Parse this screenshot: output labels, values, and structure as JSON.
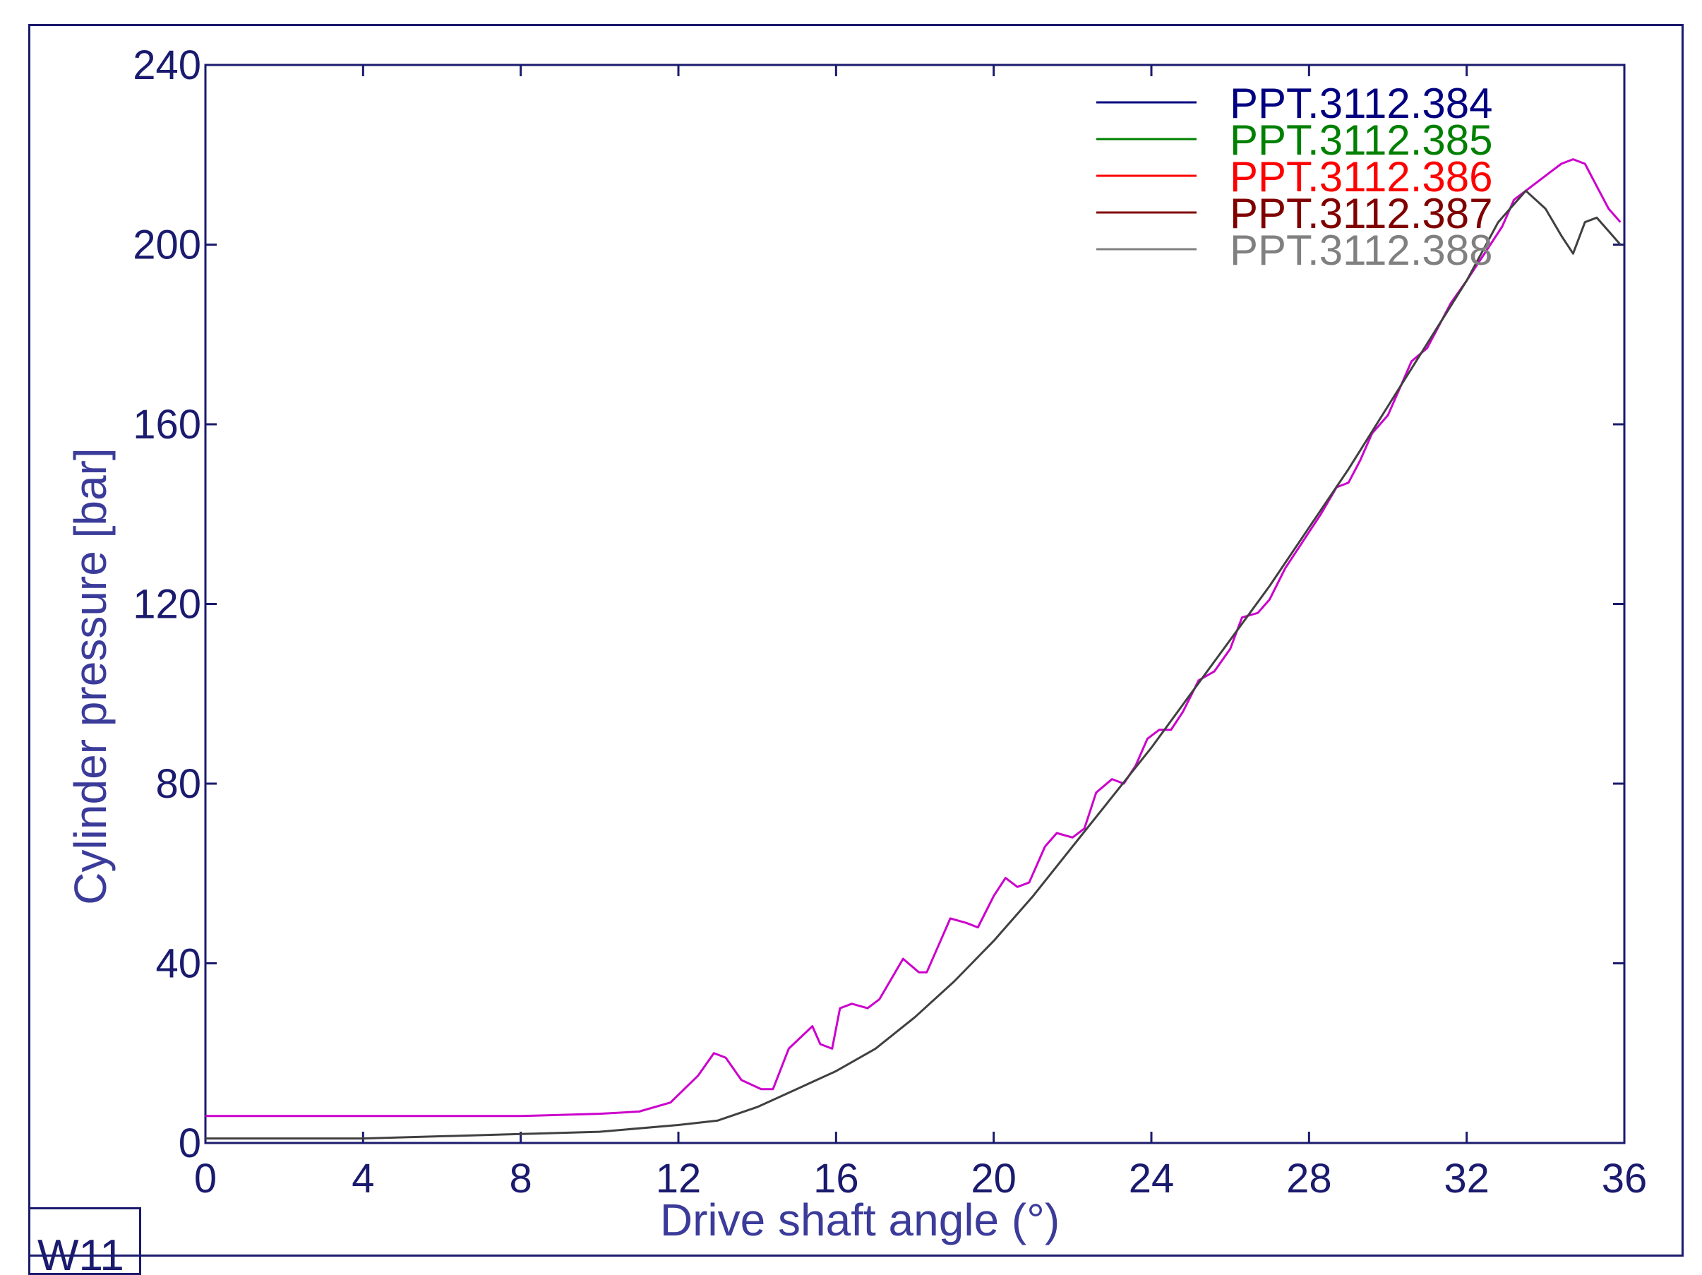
{
  "chart_data": {
    "type": "line",
    "xlabel": "Drive shaft angle (°)",
    "ylabel": "Cylinder pressure [bar]",
    "xlim": [
      0,
      36
    ],
    "ylim": [
      0,
      240
    ],
    "xticks": [
      0,
      4,
      8,
      12,
      16,
      20,
      24,
      28,
      32,
      36
    ],
    "yticks": [
      0,
      40,
      80,
      120,
      160,
      200,
      240
    ],
    "grid": false,
    "legend_position": "top-right",
    "axis_color": "#1a1a6e",
    "label_color": "#3b3b9a",
    "corner_label": "W11",
    "legend": [
      {
        "name": "PPT.3112.384",
        "color": "#000080"
      },
      {
        "name": "PPT.3112.385",
        "color": "#008000"
      },
      {
        "name": "PPT.3112.386",
        "color": "#ff0000"
      },
      {
        "name": "PPT.3112.387",
        "color": "#800000"
      },
      {
        "name": "PPT.3112.388",
        "color": "#808080"
      }
    ],
    "series": [
      {
        "color": "#cc00cc",
        "x": [
          0,
          4,
          8,
          10,
          11,
          11.8,
          12.5,
          12.9,
          13.2,
          13.6,
          14.1,
          14.4,
          14.8,
          15.4,
          15.6,
          15.9,
          16.1,
          16.4,
          16.8,
          17.1,
          17.5,
          17.7,
          18.1,
          18.3,
          18.7,
          18.9,
          19.3,
          19.6,
          20,
          20.3,
          20.6,
          20.9,
          21.3,
          21.6,
          22,
          22.3,
          22.6,
          23,
          23.3,
          23.6,
          23.9,
          24.2,
          24.5,
          24.8,
          25.2,
          25.6,
          26,
          26.3,
          26.7,
          27,
          27.4,
          27.7,
          28,
          28.3,
          28.7,
          29,
          29.3,
          29.6,
          30,
          30.3,
          30.6,
          31,
          31.3,
          31.6,
          32,
          32.3,
          32.6,
          32.9,
          33.2,
          33.5,
          33.8,
          34.1,
          34.4,
          34.7,
          35,
          35.3,
          35.6,
          35.9
        ],
        "y": [
          6,
          6,
          6,
          6.5,
          7,
          9,
          15,
          20,
          19,
          14,
          12,
          12,
          21,
          26,
          22,
          21,
          30,
          31,
          30,
          32,
          38,
          41,
          38,
          38,
          46,
          50,
          49,
          48,
          55,
          59,
          57,
          58,
          66,
          69,
          68,
          70,
          78,
          81,
          80,
          84,
          90,
          92,
          92,
          96,
          103,
          105,
          110,
          117,
          118,
          121,
          128,
          132,
          136,
          140,
          146,
          147,
          152,
          158,
          162,
          168,
          174,
          177,
          182,
          187,
          192,
          196,
          200,
          204,
          210,
          212,
          214,
          216,
          218,
          219,
          218,
          213,
          208,
          205
        ]
      },
      {
        "color": "#404040",
        "x": [
          0,
          4,
          8,
          10,
          12,
          13,
          14,
          15,
          16,
          17,
          18,
          19,
          20,
          21,
          22,
          23,
          24,
          25,
          26,
          27,
          28,
          29,
          30,
          31,
          32,
          32.8,
          33.5,
          34,
          34.4,
          34.7,
          35,
          35.3,
          35.6,
          35.9
        ],
        "y": [
          1,
          1,
          2,
          2.5,
          4,
          5,
          8,
          12,
          16,
          21,
          28,
          36,
          45,
          55,
          66,
          77,
          88,
          100,
          112,
          124,
          137,
          150,
          164,
          178,
          192,
          205,
          212,
          208,
          202,
          198,
          205,
          206,
          203,
          200
        ]
      }
    ]
  }
}
